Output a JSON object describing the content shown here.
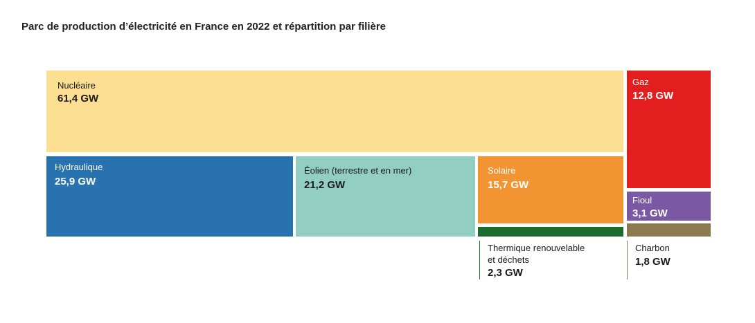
{
  "title": "Parc de production d’électricité en France en 2022 et répartition par filière",
  "chart_data": {
    "type": "treemap",
    "title": "Parc de production d’électricité en France en 2022 et répartition par filière",
    "unit": "GW",
    "items": [
      {
        "name": "Nucléaire",
        "value": 61.4,
        "value_label": "61,4 GW",
        "color": "#fcdf92",
        "text_color": "#1a1a1a"
      },
      {
        "name": "Hydraulique",
        "value": 25.9,
        "value_label": "25,9 GW",
        "color": "#2872b0",
        "text_color": "#ffffff"
      },
      {
        "name": "Éolien (terrestre et en mer)",
        "value": 21.2,
        "value_label": "21,2 GW",
        "color": "#92cec2",
        "text_color": "#1a1a1a"
      },
      {
        "name": "Solaire",
        "value": 15.7,
        "value_label": "15,7 GW",
        "color": "#f29432",
        "text_color": "#ffffff"
      },
      {
        "name": "Thermique renouvelable et déchets",
        "name_lines": [
          "Thermique renouvelable",
          "et déchets"
        ],
        "value": 2.3,
        "value_label": "2,3 GW",
        "color": "#1e6b30",
        "text_color": "#1a1a1a"
      },
      {
        "name": "Gaz",
        "value": 12.8,
        "value_label": "12,8 GW",
        "color": "#e31e1e",
        "text_color": "#ffffff"
      },
      {
        "name": "Fioul",
        "value": 3.1,
        "value_label": "3,1 GW",
        "color": "#7b58a4",
        "text_color": "#ffffff"
      },
      {
        "name": "Charbon",
        "value": 1.8,
        "value_label": "1,8 GW",
        "color": "#8c7950",
        "text_color": "#1a1a1a"
      }
    ]
  }
}
